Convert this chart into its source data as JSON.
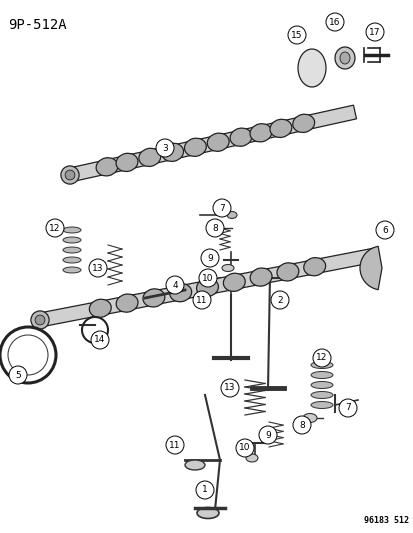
{
  "title": "9P-512A",
  "footer": "96183 512",
  "bg_color": "#ffffff",
  "fg_color": "#000000",
  "fig_width": 4.14,
  "fig_height": 5.33,
  "dpi": 100
}
